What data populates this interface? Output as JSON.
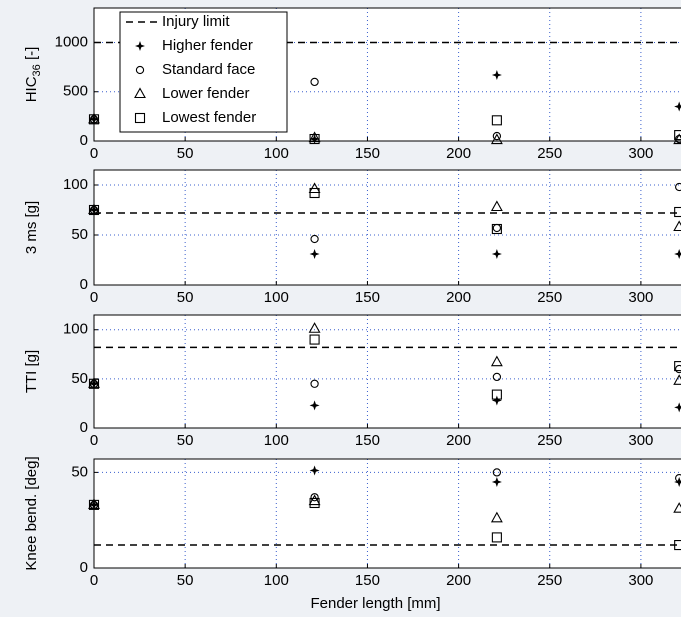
{
  "chart_data": [
    {
      "type": "scatter",
      "ylabel": "HIC",
      "ylabel_subscript": "36",
      "ylabel_suffix": " [-]",
      "x": [
        0,
        121,
        221,
        321
      ],
      "xlim": [
        0,
        322
      ],
      "xticks": [
        0,
        50,
        100,
        150,
        200,
        250,
        300
      ],
      "ylim": [
        0,
        1350
      ],
      "yticks": [
        0,
        500,
        1000
      ],
      "grid": true,
      "legend": "upper left",
      "reference_line": {
        "name": "Injury limit",
        "value": 1000
      },
      "series": [
        {
          "name": "Higher fender",
          "marker": "plus",
          "color": "#000000",
          "values": [
            220,
            20,
            670,
            350
          ]
        },
        {
          "name": "Standard face",
          "marker": "circle",
          "color": "#000000",
          "values": [
            220,
            600,
            50,
            20
          ]
        },
        {
          "name": "Lower fender",
          "marker": "triangle",
          "color": "#000000",
          "values": [
            220,
            30,
            10,
            10
          ]
        },
        {
          "name": "Lowest fender",
          "marker": "square",
          "color": "#000000",
          "values": [
            220,
            20,
            210,
            60
          ]
        }
      ]
    },
    {
      "type": "scatter",
      "ylabel": "3 ms [g]",
      "x": [
        0,
        121,
        221,
        321
      ],
      "xlim": [
        0,
        322
      ],
      "xticks": [
        0,
        50,
        100,
        150,
        200,
        250,
        300
      ],
      "ylim": [
        0,
        115
      ],
      "yticks": [
        0,
        50,
        100
      ],
      "grid": true,
      "reference_line": {
        "value": 72
      },
      "series": [
        {
          "marker": "plus",
          "color": "#000000",
          "values": [
            75,
            31,
            31,
            31
          ]
        },
        {
          "marker": "circle",
          "color": "#000000",
          "values": [
            75,
            46,
            57,
            98
          ]
        },
        {
          "marker": "triangle",
          "color": "#000000",
          "values": [
            75,
            96,
            78,
            58
          ]
        },
        {
          "marker": "square",
          "color": "#000000",
          "values": [
            75,
            92,
            56,
            73
          ]
        }
      ]
    },
    {
      "type": "scatter",
      "ylabel": "TTI [g]",
      "x": [
        0,
        121,
        221,
        321
      ],
      "xlim": [
        0,
        322
      ],
      "xticks": [
        0,
        50,
        100,
        150,
        200,
        250,
        300
      ],
      "ylim": [
        0,
        115
      ],
      "yticks": [
        0,
        50,
        100
      ],
      "grid": true,
      "reference_line": {
        "value": 82
      },
      "series": [
        {
          "marker": "plus",
          "color": "#000000",
          "values": [
            45,
            23,
            28,
            21
          ]
        },
        {
          "marker": "circle",
          "color": "#000000",
          "values": [
            45,
            45,
            52,
            60
          ]
        },
        {
          "marker": "triangle",
          "color": "#000000",
          "values": [
            45,
            101,
            67,
            48
          ]
        },
        {
          "marker": "square",
          "color": "#000000",
          "values": [
            45,
            90,
            34,
            63
          ]
        }
      ]
    },
    {
      "type": "scatter",
      "ylabel": "Knee bend. [deg]",
      "xlabel": "Fender length [mm]",
      "x": [
        0,
        121,
        221,
        321
      ],
      "xlim": [
        0,
        322
      ],
      "xticks": [
        0,
        50,
        100,
        150,
        200,
        250,
        300
      ],
      "ylim": [
        0,
        57
      ],
      "yticks": [
        0,
        50
      ],
      "grid": true,
      "reference_line": {
        "value": 12
      },
      "series": [
        {
          "marker": "plus",
          "color": "#000000",
          "values": [
            33,
            51,
            45,
            45
          ]
        },
        {
          "marker": "circle",
          "color": "#000000",
          "values": [
            33,
            37,
            50,
            47
          ]
        },
        {
          "marker": "triangle",
          "color": "#000000",
          "values": [
            33,
            35,
            26,
            31
          ]
        },
        {
          "marker": "square",
          "color": "#000000",
          "values": [
            33,
            34,
            16,
            12
          ]
        }
      ]
    }
  ]
}
